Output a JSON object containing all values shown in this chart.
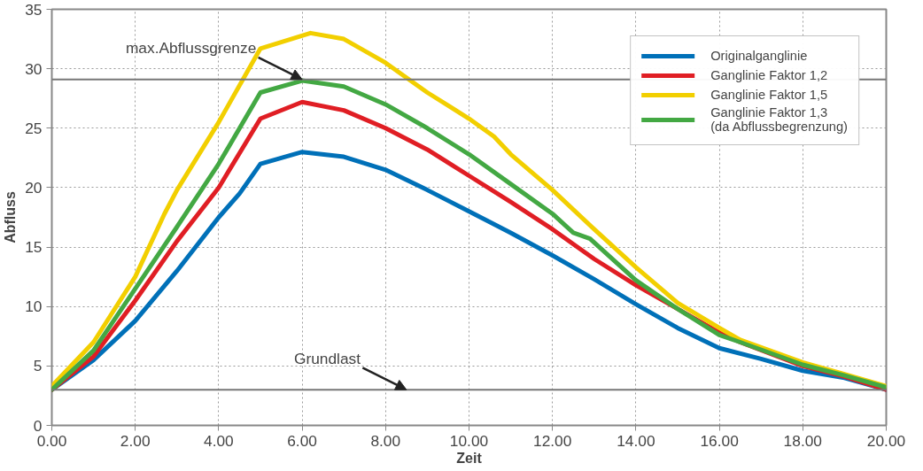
{
  "chart_data": {
    "type": "line",
    "xlabel": "Zeit",
    "ylabel": "Abfluss",
    "xlim": [
      0,
      20
    ],
    "ylim": [
      0,
      35
    ],
    "xticks": [
      {
        "value": 0,
        "label": "0.00"
      },
      {
        "value": 2,
        "label": "2.00"
      },
      {
        "value": 4,
        "label": "4.00"
      },
      {
        "value": 6,
        "label": "6.00"
      },
      {
        "value": 8,
        "label": "8.00"
      },
      {
        "value": 10,
        "label": "10.00"
      },
      {
        "value": 12,
        "label": "12.00"
      },
      {
        "value": 14,
        "label": "14.00"
      },
      {
        "value": 16,
        "label": "16.00"
      },
      {
        "value": 18,
        "label": "18.00"
      },
      {
        "value": 20,
        "label": "20.00"
      }
    ],
    "yticks": [
      0,
      5,
      10,
      15,
      20,
      25,
      30,
      35
    ],
    "grid": true,
    "legend": "top right",
    "marker": "none",
    "line_style": "solid",
    "series": [
      {
        "name": "Originalganglinie",
        "color": "#0070b8",
        "x": [
          0,
          1,
          2,
          3,
          4,
          4.5,
          5,
          6,
          7,
          8,
          9,
          10,
          11,
          12,
          13,
          14,
          15,
          16,
          17,
          18,
          19,
          20
        ],
        "values": [
          3,
          5.5,
          8.8,
          13,
          17.5,
          19.5,
          22,
          23,
          22.6,
          21.5,
          19.8,
          18,
          16.2,
          14.3,
          12.3,
          10.2,
          8.2,
          6.5,
          5.6,
          4.6,
          4,
          3
        ]
      },
      {
        "name": "Ganglinie Faktor 1,2",
        "color": "#e01e24",
        "x": [
          0,
          1,
          2,
          3,
          4,
          5,
          6,
          7,
          8,
          9,
          10,
          11,
          12,
          13,
          14,
          15,
          16,
          16.5,
          18,
          19,
          20
        ],
        "values": [
          3,
          5.8,
          10.5,
          15.5,
          20,
          25.8,
          27.2,
          26.5,
          25,
          23.2,
          21,
          18.8,
          16.5,
          14,
          11.8,
          9.8,
          7.8,
          7,
          5,
          4.1,
          3
        ]
      },
      {
        "name": "Ganglinie Faktor 1,5",
        "color": "#f2cf00",
        "x": [
          0,
          1,
          2,
          2.7,
          3,
          4,
          5,
          6.2,
          7,
          8,
          9,
          10,
          10.6,
          11,
          12,
          13,
          14,
          15,
          16,
          16.5,
          18,
          19,
          20
        ],
        "values": [
          3.3,
          7,
          12.5,
          17.8,
          19.8,
          25.5,
          31.7,
          33,
          32.5,
          30.5,
          28,
          25.8,
          24.3,
          22.8,
          19.8,
          16.5,
          13.3,
          10.3,
          8.2,
          7.2,
          5.3,
          4.3,
          3.3
        ]
      },
      {
        "name": "Ganglinie Faktor 1,3\n(da Abflussbegrenzung)",
        "color": "#43a843",
        "x": [
          0,
          1,
          2,
          3,
          4,
          5,
          6,
          7,
          8,
          9,
          10,
          11,
          12,
          12.5,
          12.9,
          14,
          15,
          16,
          16.5,
          18,
          19,
          20
        ],
        "values": [
          3,
          6.3,
          11.5,
          16.7,
          22,
          28,
          29,
          28.5,
          27,
          25,
          22.8,
          20.3,
          17.8,
          16.2,
          15.7,
          12.2,
          9.8,
          7.6,
          7,
          5.1,
          4.2,
          3.2
        ]
      }
    ],
    "ref_lines": [
      {
        "axis": "y",
        "value": 29.1,
        "color": "#777777"
      },
      {
        "axis": "y",
        "value": 3,
        "color": "#777777"
      }
    ],
    "annotations": [
      {
        "text": "max.Abflussgrenze",
        "x": 6,
        "y": 29.1
      },
      {
        "text": "Grundlast",
        "x": 8.5,
        "y": 3
      }
    ]
  }
}
